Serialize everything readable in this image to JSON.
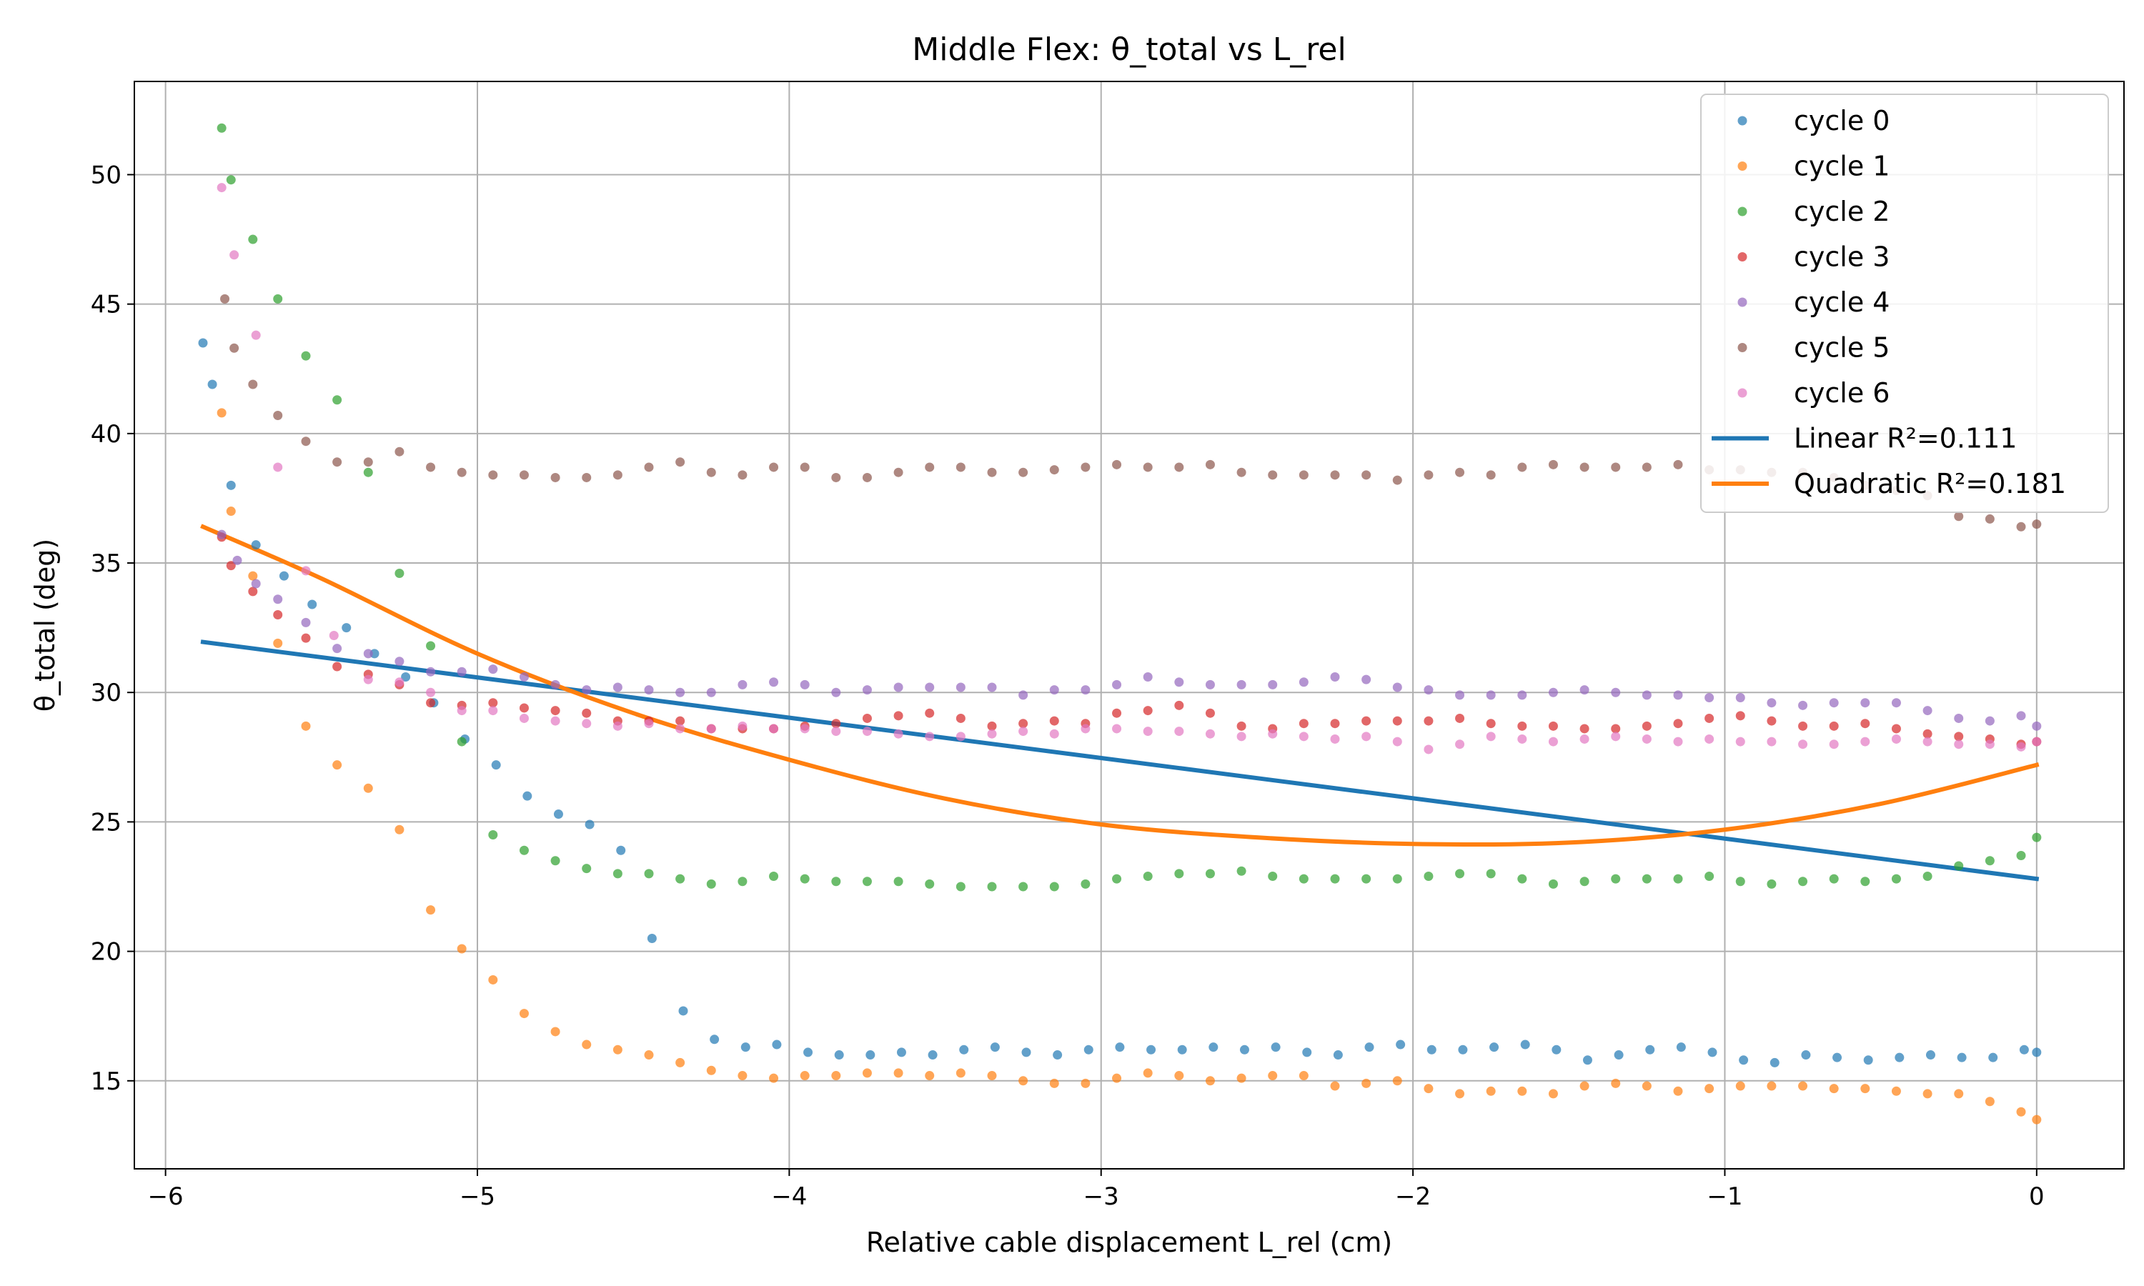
{
  "chart_data": {
    "type": "scatter",
    "title": "Middle Flex: θ_total vs L_rel",
    "xlabel": "Relative cable displacement L_rel (cm)",
    "ylabel": "θ_total (deg)",
    "xlim": [
      -6.1,
      0.28
    ],
    "ylim": [
      11.6,
      53.6
    ],
    "x_ticks": [
      -6,
      -5,
      -4,
      -3,
      -2,
      -1,
      0
    ],
    "x_tick_labels": [
      "−6",
      "−5",
      "−4",
      "−3",
      "−2",
      "−1",
      "0"
    ],
    "y_ticks": [
      15,
      20,
      25,
      30,
      35,
      40,
      45,
      50
    ],
    "y_tick_labels": [
      "15",
      "20",
      "25",
      "30",
      "35",
      "40",
      "45",
      "50"
    ],
    "grid": true,
    "legend_position": "top-right",
    "series": [
      {
        "name": "cycle 0",
        "kind": "scatter",
        "color": "#1f77b4",
        "x": [
          -5.88,
          -5.85,
          -5.79,
          -5.71,
          -5.62,
          -5.53,
          -5.42,
          -5.33,
          -5.23,
          -5.14,
          -5.04,
          -4.94,
          -4.84,
          -4.74,
          -4.64,
          -4.54,
          -4.44,
          -4.34,
          -4.24,
          -4.14,
          -4.04,
          -3.94,
          -3.84,
          -3.74,
          -3.64,
          -3.54,
          -3.44,
          -3.34,
          -3.24,
          -3.14,
          -3.04,
          -2.94,
          -2.84,
          -2.74,
          -2.64,
          -2.54,
          -2.44,
          -2.34,
          -2.24,
          -2.14,
          -2.04,
          -1.94,
          -1.84,
          -1.74,
          -1.64,
          -1.54,
          -1.44,
          -1.34,
          -1.24,
          -1.14,
          -1.04,
          -0.94,
          -0.84,
          -0.74,
          -0.64,
          -0.54,
          -0.44,
          -0.34,
          -0.24,
          -0.14,
          -0.04,
          0.0
        ],
        "y": [
          43.5,
          41.9,
          38.0,
          35.7,
          34.5,
          33.4,
          32.5,
          31.5,
          30.6,
          29.6,
          28.2,
          27.2,
          26.0,
          25.3,
          24.9,
          23.9,
          20.5,
          17.7,
          16.6,
          16.3,
          16.4,
          16.1,
          16.0,
          16.0,
          16.1,
          16.0,
          16.2,
          16.3,
          16.1,
          16.0,
          16.2,
          16.3,
          16.2,
          16.2,
          16.3,
          16.2,
          16.3,
          16.1,
          16.0,
          16.3,
          16.4,
          16.2,
          16.2,
          16.3,
          16.4,
          16.2,
          15.8,
          16.0,
          16.2,
          16.3,
          16.1,
          15.8,
          15.7,
          16.0,
          15.9,
          15.8,
          15.9,
          16.0,
          15.9,
          15.9,
          16.2,
          16.1
        ]
      },
      {
        "name": "cycle 1",
        "kind": "scatter",
        "color": "#ff7f0e",
        "x": [
          -5.82,
          -5.79,
          -5.72,
          -5.64,
          -5.55,
          -5.45,
          -5.35,
          -5.25,
          -5.15,
          -5.05,
          -4.95,
          -4.85,
          -4.75,
          -4.65,
          -4.55,
          -4.45,
          -4.35,
          -4.25,
          -4.15,
          -4.05,
          -3.95,
          -3.85,
          -3.75,
          -3.65,
          -3.55,
          -3.45,
          -3.35,
          -3.25,
          -3.15,
          -3.05,
          -2.95,
          -2.85,
          -2.75,
          -2.65,
          -2.55,
          -2.45,
          -2.35,
          -2.25,
          -2.15,
          -2.05,
          -1.95,
          -1.85,
          -1.75,
          -1.65,
          -1.55,
          -1.45,
          -1.35,
          -1.25,
          -1.15,
          -1.05,
          -0.95,
          -0.85,
          -0.75,
          -0.65,
          -0.55,
          -0.45,
          -0.35,
          -0.25,
          -0.15,
          -0.05,
          0.0
        ],
        "y": [
          40.8,
          37.0,
          34.5,
          31.9,
          28.7,
          27.2,
          26.3,
          24.7,
          21.6,
          20.1,
          18.9,
          17.6,
          16.9,
          16.4,
          16.2,
          16.0,
          15.7,
          15.4,
          15.2,
          15.1,
          15.2,
          15.2,
          15.3,
          15.3,
          15.2,
          15.3,
          15.2,
          15.0,
          14.9,
          14.9,
          15.1,
          15.3,
          15.2,
          15.0,
          15.1,
          15.2,
          15.2,
          14.8,
          14.9,
          15.0,
          14.7,
          14.5,
          14.6,
          14.6,
          14.5,
          14.8,
          14.9,
          14.8,
          14.6,
          14.7,
          14.8,
          14.8,
          14.8,
          14.7,
          14.7,
          14.6,
          14.5,
          14.5,
          14.2,
          13.8,
          13.5
        ]
      },
      {
        "name": "cycle 2",
        "kind": "scatter",
        "color": "#2ca02c",
        "x": [
          -5.82,
          -5.79,
          -5.72,
          -5.64,
          -5.55,
          -5.45,
          -5.35,
          -5.25,
          -5.15,
          -5.05,
          -4.95,
          -4.85,
          -4.75,
          -4.65,
          -4.55,
          -4.45,
          -4.35,
          -4.25,
          -4.15,
          -4.05,
          -3.95,
          -3.85,
          -3.75,
          -3.65,
          -3.55,
          -3.45,
          -3.35,
          -3.25,
          -3.15,
          -3.05,
          -2.95,
          -2.85,
          -2.75,
          -2.65,
          -2.55,
          -2.45,
          -2.35,
          -2.25,
          -2.15,
          -2.05,
          -1.95,
          -1.85,
          -1.75,
          -1.65,
          -1.55,
          -1.45,
          -1.35,
          -1.25,
          -1.15,
          -1.05,
          -0.95,
          -0.85,
          -0.75,
          -0.65,
          -0.55,
          -0.45,
          -0.35,
          -0.25,
          -0.15,
          -0.05,
          0.0
        ],
        "y": [
          51.8,
          49.8,
          47.5,
          45.2,
          43.0,
          41.3,
          38.5,
          34.6,
          31.8,
          28.1,
          24.5,
          23.9,
          23.5,
          23.2,
          23.0,
          23.0,
          22.8,
          22.6,
          22.7,
          22.9,
          22.8,
          22.7,
          22.7,
          22.7,
          22.6,
          22.5,
          22.5,
          22.5,
          22.5,
          22.6,
          22.8,
          22.9,
          23.0,
          23.0,
          23.1,
          22.9,
          22.8,
          22.8,
          22.8,
          22.8,
          22.9,
          23.0,
          23.0,
          22.8,
          22.6,
          22.7,
          22.8,
          22.8,
          22.8,
          22.9,
          22.7,
          22.6,
          22.7,
          22.8,
          22.7,
          22.8,
          22.9,
          23.3,
          23.5,
          23.7,
          24.4
        ]
      },
      {
        "name": "cycle 3",
        "kind": "scatter",
        "color": "#d62728",
        "x": [
          -5.82,
          -5.79,
          -5.72,
          -5.64,
          -5.55,
          -5.45,
          -5.35,
          -5.25,
          -5.15,
          -5.05,
          -4.95,
          -4.85,
          -4.75,
          -4.65,
          -4.55,
          -4.45,
          -4.35,
          -4.25,
          -4.15,
          -4.05,
          -3.95,
          -3.85,
          -3.75,
          -3.65,
          -3.55,
          -3.45,
          -3.35,
          -3.25,
          -3.15,
          -3.05,
          -2.95,
          -2.85,
          -2.75,
          -2.65,
          -2.55,
          -2.45,
          -2.35,
          -2.25,
          -2.15,
          -2.05,
          -1.95,
          -1.85,
          -1.75,
          -1.65,
          -1.55,
          -1.45,
          -1.35,
          -1.25,
          -1.15,
          -1.05,
          -0.95,
          -0.85,
          -0.75,
          -0.65,
          -0.55,
          -0.45,
          -0.35,
          -0.25,
          -0.15,
          -0.05,
          0.0
        ],
        "y": [
          36.0,
          34.9,
          33.9,
          33.0,
          32.1,
          31.0,
          30.7,
          30.3,
          29.6,
          29.5,
          29.6,
          29.4,
          29.3,
          29.2,
          28.9,
          28.9,
          28.9,
          28.6,
          28.6,
          28.6,
          28.7,
          28.8,
          29.0,
          29.1,
          29.2,
          29.0,
          28.7,
          28.8,
          28.9,
          28.8,
          29.2,
          29.3,
          29.5,
          29.2,
          28.7,
          28.6,
          28.8,
          28.8,
          28.9,
          28.9,
          28.9,
          29.0,
          28.8,
          28.7,
          28.7,
          28.6,
          28.6,
          28.7,
          28.8,
          29.0,
          29.1,
          28.9,
          28.7,
          28.7,
          28.8,
          28.6,
          28.4,
          28.3,
          28.2,
          28.0,
          28.1
        ]
      },
      {
        "name": "cycle 4",
        "kind": "scatter",
        "color": "#9467bd",
        "x": [
          -5.82,
          -5.77,
          -5.71,
          -5.64,
          -5.55,
          -5.45,
          -5.35,
          -5.25,
          -5.15,
          -5.05,
          -4.95,
          -4.85,
          -4.75,
          -4.65,
          -4.55,
          -4.45,
          -4.35,
          -4.25,
          -4.15,
          -4.05,
          -3.95,
          -3.85,
          -3.75,
          -3.65,
          -3.55,
          -3.45,
          -3.35,
          -3.25,
          -3.15,
          -3.05,
          -2.95,
          -2.85,
          -2.75,
          -2.65,
          -2.55,
          -2.45,
          -2.35,
          -2.25,
          -2.15,
          -2.05,
          -1.95,
          -1.85,
          -1.75,
          -1.65,
          -1.55,
          -1.45,
          -1.35,
          -1.25,
          -1.15,
          -1.05,
          -0.95,
          -0.85,
          -0.75,
          -0.65,
          -0.55,
          -0.45,
          -0.35,
          -0.25,
          -0.15,
          -0.05,
          0.0
        ],
        "y": [
          36.1,
          35.1,
          34.2,
          33.6,
          32.7,
          31.7,
          31.5,
          31.2,
          30.8,
          30.8,
          30.9,
          30.6,
          30.3,
          30.1,
          30.2,
          30.1,
          30.0,
          30.0,
          30.3,
          30.4,
          30.3,
          30.0,
          30.1,
          30.2,
          30.2,
          30.2,
          30.2,
          29.9,
          30.1,
          30.1,
          30.3,
          30.6,
          30.4,
          30.3,
          30.3,
          30.3,
          30.4,
          30.6,
          30.5,
          30.2,
          30.1,
          29.9,
          29.9,
          29.9,
          30.0,
          30.1,
          30.0,
          29.9,
          29.9,
          29.8,
          29.8,
          29.6,
          29.5,
          29.6,
          29.6,
          29.6,
          29.3,
          29.0,
          28.9,
          29.1,
          28.7
        ]
      },
      {
        "name": "cycle 5",
        "kind": "scatter",
        "color": "#8c564b",
        "x": [
          -5.81,
          -5.78,
          -5.72,
          -5.64,
          -5.55,
          -5.45,
          -5.35,
          -5.25,
          -5.15,
          -5.05,
          -4.95,
          -4.85,
          -4.75,
          -4.65,
          -4.55,
          -4.45,
          -4.35,
          -4.25,
          -4.15,
          -4.05,
          -3.95,
          -3.85,
          -3.75,
          -3.65,
          -3.55,
          -3.45,
          -3.35,
          -3.25,
          -3.15,
          -3.05,
          -2.95,
          -2.85,
          -2.75,
          -2.65,
          -2.55,
          -2.45,
          -2.35,
          -2.25,
          -2.15,
          -2.05,
          -1.95,
          -1.85,
          -1.75,
          -1.65,
          -1.55,
          -1.45,
          -1.35,
          -1.25,
          -1.15,
          -1.05,
          -0.95,
          -0.85,
          -0.75,
          -0.65,
          -0.55,
          -0.45,
          -0.35,
          -0.25,
          -0.15,
          -0.05,
          0.0
        ],
        "y": [
          45.2,
          43.3,
          41.9,
          40.7,
          39.7,
          38.9,
          38.9,
          39.3,
          38.7,
          38.5,
          38.4,
          38.4,
          38.3,
          38.3,
          38.4,
          38.7,
          38.9,
          38.5,
          38.4,
          38.7,
          38.7,
          38.3,
          38.3,
          38.5,
          38.7,
          38.7,
          38.5,
          38.5,
          38.6,
          38.7,
          38.8,
          38.7,
          38.7,
          38.8,
          38.5,
          38.4,
          38.4,
          38.4,
          38.4,
          38.2,
          38.4,
          38.5,
          38.4,
          38.7,
          38.8,
          38.7,
          38.7,
          38.7,
          38.8,
          38.6,
          38.6,
          38.5,
          38.5,
          38.3,
          38.0,
          37.8,
          37.6,
          36.8,
          36.7,
          36.4,
          36.5
        ]
      },
      {
        "name": "cycle 6",
        "kind": "scatter",
        "color": "#e377c2",
        "x": [
          -5.82,
          -5.78,
          -5.71,
          -5.64,
          -5.55,
          -5.46,
          -5.35,
          -5.25,
          -5.15,
          -5.05,
          -4.95,
          -4.85,
          -4.75,
          -4.65,
          -4.55,
          -4.45,
          -4.35,
          -4.25,
          -4.15,
          -4.05,
          -3.95,
          -3.85,
          -3.75,
          -3.65,
          -3.55,
          -3.45,
          -3.35,
          -3.25,
          -3.15,
          -3.05,
          -2.95,
          -2.85,
          -2.75,
          -2.65,
          -2.55,
          -2.45,
          -2.35,
          -2.25,
          -2.15,
          -2.05,
          -1.95,
          -1.85,
          -1.75,
          -1.65,
          -1.55,
          -1.45,
          -1.35,
          -1.25,
          -1.15,
          -1.05,
          -0.95,
          -0.85,
          -0.75,
          -0.65,
          -0.55,
          -0.45,
          -0.35,
          -0.25,
          -0.15,
          -0.05,
          0.0
        ],
        "y": [
          49.5,
          46.9,
          43.8,
          38.7,
          34.7,
          32.2,
          30.5,
          30.4,
          30.0,
          29.3,
          29.3,
          29.0,
          28.9,
          28.8,
          28.7,
          28.8,
          28.6,
          28.6,
          28.7,
          28.6,
          28.6,
          28.5,
          28.5,
          28.4,
          28.3,
          28.3,
          28.4,
          28.5,
          28.4,
          28.6,
          28.6,
          28.5,
          28.5,
          28.4,
          28.3,
          28.4,
          28.3,
          28.2,
          28.3,
          28.1,
          27.8,
          28.0,
          28.3,
          28.2,
          28.1,
          28.2,
          28.3,
          28.2,
          28.1,
          28.2,
          28.1,
          28.1,
          28.0,
          28.0,
          28.1,
          28.2,
          28.1,
          28.0,
          28.0,
          27.9,
          28.1
        ]
      },
      {
        "name": "Linear R²=0.111",
        "kind": "line",
        "color": "#1f77b4",
        "x": [
          -5.88,
          0.0
        ],
        "y": [
          31.95,
          22.8
        ]
      },
      {
        "name": "Quadratic R²=0.181",
        "kind": "line",
        "color": "#ff7f0e",
        "x": [
          -5.88,
          -5.5,
          -5.0,
          -4.5,
          -4.0,
          -3.5,
          -3.0,
          -2.5,
          -2.0,
          -1.5,
          -1.0,
          -0.5,
          0.0
        ],
        "y": [
          36.4,
          34.4,
          31.5,
          29.2,
          27.4,
          25.9,
          24.9,
          24.4,
          24.15,
          24.2,
          24.7,
          25.7,
          27.2
        ]
      }
    ]
  }
}
